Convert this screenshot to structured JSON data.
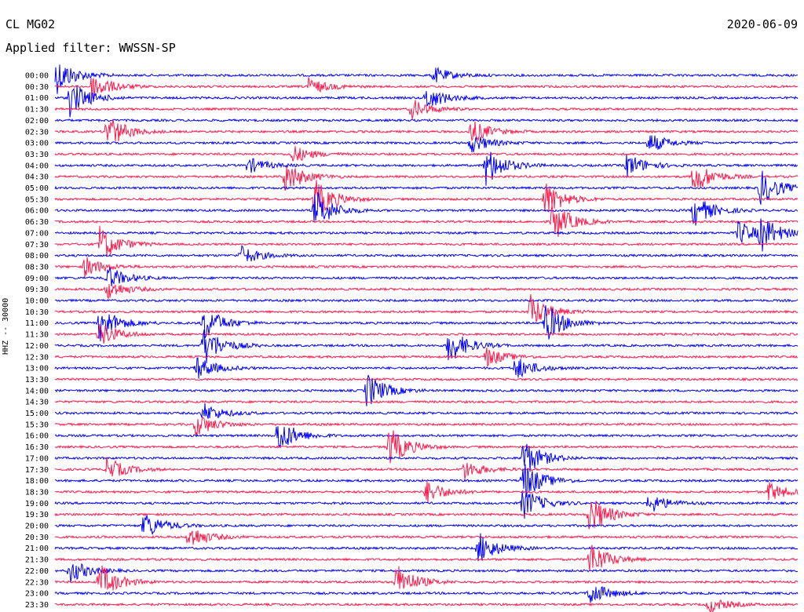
{
  "header": {
    "station": "CL MG02",
    "date": "2020-06-09",
    "filter": "Applied filter: WWSSN-SP",
    "channel": "HHZ -- 30000"
  },
  "chart_data": {
    "type": "helicorder",
    "title": "",
    "ylabel": "HHZ -- 30000",
    "row_labels": [
      "00:00",
      "00:30",
      "01:00",
      "01:30",
      "02:00",
      "02:30",
      "03:00",
      "03:30",
      "04:00",
      "04:30",
      "05:00",
      "05:30",
      "06:00",
      "06:30",
      "07:00",
      "07:30",
      "08:00",
      "08:30",
      "09:00",
      "09:30",
      "10:00",
      "10:30",
      "11:00",
      "11:30",
      "12:00",
      "12:30",
      "13:00",
      "13:30",
      "14:00",
      "14:30",
      "15:00",
      "15:30",
      "16:00",
      "16:30",
      "17:00",
      "17:30",
      "18:00",
      "18:30",
      "19:00",
      "19:30",
      "20:00",
      "20:30",
      "21:00",
      "21:30",
      "22:00",
      "22:30",
      "23:00",
      "23:30"
    ],
    "trace_colors": [
      "#0000ff",
      "#ff1a4b"
    ],
    "events": [
      {
        "row": 0,
        "x": 0.0,
        "amp": 1.0
      },
      {
        "row": 0,
        "x": 0.51,
        "amp": 0.4
      },
      {
        "row": 1,
        "x": 0.34,
        "amp": 0.45
      },
      {
        "row": 1,
        "x": 0.05,
        "amp": 0.7
      },
      {
        "row": 2,
        "x": 0.02,
        "amp": 0.9
      },
      {
        "row": 2,
        "x": 0.5,
        "amp": 0.6
      },
      {
        "row": 3,
        "x": 0.48,
        "amp": 0.5
      },
      {
        "row": 5,
        "x": 0.07,
        "amp": 0.9
      },
      {
        "row": 5,
        "x": 0.56,
        "amp": 0.6
      },
      {
        "row": 6,
        "x": 0.56,
        "amp": 0.5
      },
      {
        "row": 6,
        "x": 0.8,
        "amp": 0.5
      },
      {
        "row": 7,
        "x": 0.32,
        "amp": 0.45
      },
      {
        "row": 8,
        "x": 0.58,
        "amp": 1.0
      },
      {
        "row": 8,
        "x": 0.26,
        "amp": 0.4
      },
      {
        "row": 8,
        "x": 0.77,
        "amp": 0.6
      },
      {
        "row": 9,
        "x": 0.31,
        "amp": 0.8
      },
      {
        "row": 9,
        "x": 0.86,
        "amp": 0.85
      },
      {
        "row": 10,
        "x": 0.95,
        "amp": 0.9
      },
      {
        "row": 11,
        "x": 0.35,
        "amp": 1.0
      },
      {
        "row": 11,
        "x": 0.66,
        "amp": 0.9
      },
      {
        "row": 12,
        "x": 0.86,
        "amp": 0.8
      },
      {
        "row": 12,
        "x": 0.35,
        "amp": 1.0
      },
      {
        "row": 13,
        "x": 0.67,
        "amp": 1.0
      },
      {
        "row": 14,
        "x": 0.95,
        "amp": 0.8
      },
      {
        "row": 14,
        "x": 0.92,
        "amp": 0.6
      },
      {
        "row": 15,
        "x": 0.06,
        "amp": 0.9
      },
      {
        "row": 16,
        "x": 0.25,
        "amp": 0.5
      },
      {
        "row": 17,
        "x": 0.04,
        "amp": 0.5
      },
      {
        "row": 18,
        "x": 0.07,
        "amp": 0.6
      },
      {
        "row": 19,
        "x": 0.07,
        "amp": 0.5
      },
      {
        "row": 21,
        "x": 0.64,
        "amp": 0.85
      },
      {
        "row": 22,
        "x": 0.06,
        "amp": 0.9
      },
      {
        "row": 22,
        "x": 0.2,
        "amp": 0.9
      },
      {
        "row": 22,
        "x": 0.66,
        "amp": 1.0
      },
      {
        "row": 23,
        "x": 0.06,
        "amp": 0.6
      },
      {
        "row": 24,
        "x": 0.53,
        "amp": 0.9
      },
      {
        "row": 24,
        "x": 0.2,
        "amp": 1.0
      },
      {
        "row": 25,
        "x": 0.58,
        "amp": 0.5
      },
      {
        "row": 26,
        "x": 0.19,
        "amp": 0.6
      },
      {
        "row": 26,
        "x": 0.62,
        "amp": 0.6
      },
      {
        "row": 28,
        "x": 0.42,
        "amp": 0.9
      },
      {
        "row": 30,
        "x": 0.2,
        "amp": 0.5
      },
      {
        "row": 31,
        "x": 0.19,
        "amp": 0.6
      },
      {
        "row": 32,
        "x": 0.3,
        "amp": 0.9
      },
      {
        "row": 33,
        "x": 0.45,
        "amp": 1.0
      },
      {
        "row": 34,
        "x": 0.63,
        "amp": 1.0
      },
      {
        "row": 35,
        "x": 0.07,
        "amp": 0.6
      },
      {
        "row": 35,
        "x": 0.55,
        "amp": 0.5
      },
      {
        "row": 36,
        "x": 0.63,
        "amp": 1.0
      },
      {
        "row": 37,
        "x": 0.5,
        "amp": 0.6
      },
      {
        "row": 37,
        "x": 0.96,
        "amp": 0.5
      },
      {
        "row": 38,
        "x": 0.63,
        "amp": 0.8
      },
      {
        "row": 38,
        "x": 0.8,
        "amp": 0.5
      },
      {
        "row": 39,
        "x": 0.72,
        "amp": 1.0
      },
      {
        "row": 40,
        "x": 0.12,
        "amp": 0.7
      },
      {
        "row": 41,
        "x": 0.18,
        "amp": 0.6
      },
      {
        "row": 42,
        "x": 0.57,
        "amp": 0.8
      },
      {
        "row": 43,
        "x": 0.72,
        "amp": 0.9
      },
      {
        "row": 44,
        "x": 0.02,
        "amp": 0.6
      },
      {
        "row": 45,
        "x": 0.06,
        "amp": 0.9
      },
      {
        "row": 45,
        "x": 0.46,
        "amp": 0.9
      },
      {
        "row": 46,
        "x": 0.72,
        "amp": 0.6
      },
      {
        "row": 47,
        "x": 0.88,
        "amp": 0.4
      }
    ]
  }
}
